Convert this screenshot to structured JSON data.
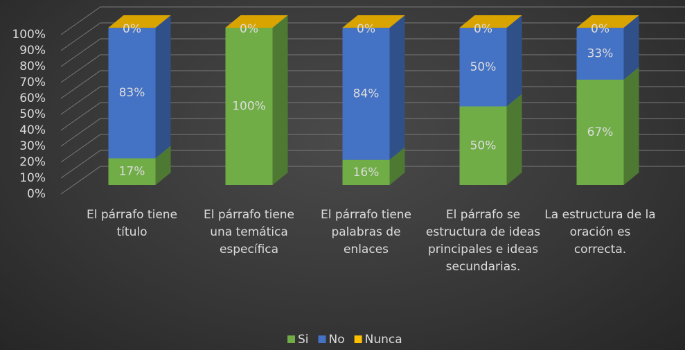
{
  "chart_data": {
    "type": "bar3d_stacked_percent",
    "categories": [
      "El párrafo tiene título",
      "El párrafo tiene una temática específica",
      "El párrafo tiene palabras de enlaces",
      "El párrafo se estructura de ideas principales e ideas secundarias.",
      "La estructura de la oración es correcta."
    ],
    "series": [
      {
        "name": "Si",
        "color": "#70ad47",
        "values": [
          17,
          100,
          16,
          50,
          67
        ],
        "value_labels": [
          "17%",
          "100%",
          "16%",
          "50%",
          "67%"
        ]
      },
      {
        "name": "No",
        "color": "#4472c4",
        "values": [
          83,
          0,
          84,
          50,
          33
        ],
        "value_labels": [
          "83%",
          null,
          "84%",
          "50%",
          "33%"
        ]
      },
      {
        "name": "Nunca",
        "color": "#ffc000",
        "values": [
          0,
          0,
          0,
          0,
          0
        ],
        "value_labels": [
          "0%",
          "0%",
          "0%",
          "0%",
          "0%"
        ]
      }
    ],
    "ylim": [
      0,
      100
    ],
    "yticks": [
      {
        "value": 0,
        "label": "0%"
      },
      {
        "value": 10,
        "label": "10%"
      },
      {
        "value": 20,
        "label": "20%"
      },
      {
        "value": 30,
        "label": "30%"
      },
      {
        "value": 40,
        "label": "40%"
      },
      {
        "value": 50,
        "label": "50%"
      },
      {
        "value": 60,
        "label": "60%"
      },
      {
        "value": 70,
        "label": "70%"
      },
      {
        "value": 80,
        "label": "80%"
      },
      {
        "value": 90,
        "label": "90%"
      },
      {
        "value": 100,
        "label": "100%"
      }
    ],
    "grid": true,
    "legend": "bottom"
  }
}
